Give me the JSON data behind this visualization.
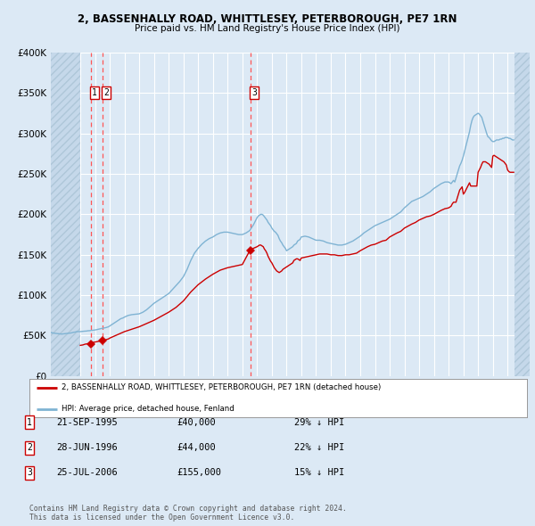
{
  "title": "2, BASSENHALLY ROAD, WHITTLESEY, PETERBOROUGH, PE7 1RN",
  "subtitle": "Price paid vs. HM Land Registry's House Price Index (HPI)",
  "background_color": "#dce9f5",
  "plot_bg_color": "#dce9f5",
  "grid_color": "#ffffff",
  "ylabel_values": [
    "£0",
    "£50K",
    "£100K",
    "£150K",
    "£200K",
    "£250K",
    "£300K",
    "£350K",
    "£400K"
  ],
  "ylim": [
    0,
    400000
  ],
  "xlim_start": 1993.0,
  "xlim_end": 2025.5,
  "sale_year_floats": [
    1995.72,
    1996.49,
    2006.56
  ],
  "sale_prices": [
    40000,
    44000,
    155000
  ],
  "sale_labels": [
    "1",
    "2",
    "3"
  ],
  "red_line_color": "#cc0000",
  "blue_line_color": "#7fb3d3",
  "sale_marker_color": "#cc0000",
  "dashed_line_color": "#ff5555",
  "legend_label_red": "2, BASSENHALLY ROAD, WHITTLESEY, PETERBOROUGH, PE7 1RN (detached house)",
  "legend_label_blue": "HPI: Average price, detached house, Fenland",
  "table_entries": [
    {
      "num": "1",
      "date": "21-SEP-1995",
      "price": "£40,000",
      "note": "29% ↓ HPI"
    },
    {
      "num": "2",
      "date": "28-JUN-1996",
      "price": "£44,000",
      "note": "22% ↓ HPI"
    },
    {
      "num": "3",
      "date": "25-JUL-2006",
      "price": "£155,000",
      "note": "15% ↓ HPI"
    }
  ],
  "footer": "Contains HM Land Registry data © Crown copyright and database right 2024.\nThis data is licensed under the Open Government Licence v3.0.",
  "hpi_data": {
    "years": [
      1993.0,
      1993.083,
      1993.167,
      1993.25,
      1993.333,
      1993.417,
      1993.5,
      1993.583,
      1993.667,
      1993.75,
      1993.833,
      1993.917,
      1994.0,
      1994.083,
      1994.167,
      1994.25,
      1994.333,
      1994.417,
      1994.5,
      1994.583,
      1994.667,
      1994.75,
      1994.833,
      1994.917,
      1995.0,
      1995.083,
      1995.167,
      1995.25,
      1995.333,
      1995.417,
      1995.5,
      1995.583,
      1995.667,
      1995.75,
      1995.833,
      1995.917,
      1996.0,
      1996.083,
      1996.167,
      1996.25,
      1996.333,
      1996.417,
      1996.5,
      1996.583,
      1996.667,
      1996.75,
      1996.833,
      1996.917,
      1997.0,
      1997.083,
      1997.167,
      1997.25,
      1997.333,
      1997.417,
      1997.5,
      1997.583,
      1997.667,
      1997.75,
      1997.833,
      1997.917,
      1998.0,
      1998.25,
      1998.5,
      1998.75,
      1999.0,
      1999.25,
      1999.5,
      1999.75,
      2000.0,
      2000.25,
      2000.5,
      2000.75,
      2001.0,
      2001.25,
      2001.5,
      2001.75,
      2002.0,
      2002.25,
      2002.5,
      2002.75,
      2003.0,
      2003.25,
      2003.5,
      2003.75,
      2004.0,
      2004.25,
      2004.5,
      2004.75,
      2005.0,
      2005.25,
      2005.5,
      2005.75,
      2006.0,
      2006.25,
      2006.5,
      2006.75,
      2007.0,
      2007.083,
      2007.167,
      2007.25,
      2007.333,
      2007.417,
      2007.5,
      2007.583,
      2007.667,
      2007.75,
      2007.833,
      2007.917,
      2008.0,
      2008.083,
      2008.167,
      2008.25,
      2008.333,
      2008.417,
      2008.5,
      2008.583,
      2008.667,
      2008.75,
      2008.833,
      2008.917,
      2009.0,
      2009.083,
      2009.167,
      2009.25,
      2009.333,
      2009.417,
      2009.5,
      2009.583,
      2009.667,
      2009.75,
      2009.833,
      2009.917,
      2010.0,
      2010.25,
      2010.5,
      2010.75,
      2011.0,
      2011.25,
      2011.5,
      2011.75,
      2012.0,
      2012.25,
      2012.5,
      2012.75,
      2013.0,
      2013.25,
      2013.5,
      2013.75,
      2014.0,
      2014.25,
      2014.5,
      2014.75,
      2015.0,
      2015.25,
      2015.5,
      2015.75,
      2016.0,
      2016.25,
      2016.5,
      2016.75,
      2017.0,
      2017.25,
      2017.5,
      2017.75,
      2018.0,
      2018.25,
      2018.5,
      2018.75,
      2019.0,
      2019.25,
      2019.5,
      2019.75,
      2020.0,
      2020.083,
      2020.167,
      2020.25,
      2020.333,
      2020.417,
      2020.5,
      2020.583,
      2020.667,
      2020.75,
      2020.833,
      2020.917,
      2021.0,
      2021.083,
      2021.167,
      2021.25,
      2021.333,
      2021.417,
      2021.5,
      2021.583,
      2021.667,
      2021.75,
      2021.833,
      2021.917,
      2022.0,
      2022.083,
      2022.167,
      2022.25,
      2022.333,
      2022.417,
      2022.5,
      2022.583,
      2022.667,
      2022.75,
      2022.833,
      2022.917,
      2023.0,
      2023.083,
      2023.167,
      2023.25,
      2023.333,
      2023.417,
      2023.5,
      2023.583,
      2023.667,
      2023.75,
      2023.833,
      2023.917,
      2024.0,
      2024.083,
      2024.167,
      2024.25,
      2024.333,
      2024.417
    ],
    "values": [
      54000,
      53500,
      53200,
      53000,
      52800,
      52600,
      52500,
      52300,
      52100,
      52000,
      52200,
      52400,
      52500,
      52700,
      52900,
      53000,
      53200,
      53500,
      54000,
      54200,
      54500,
      55000,
      55000,
      55000,
      55000,
      55200,
      55400,
      55500,
      55600,
      55700,
      56000,
      56100,
      56200,
      56500,
      56600,
      56800,
      57000,
      57300,
      57700,
      58000,
      58400,
      58700,
      59000,
      59300,
      59600,
      60000,
      60500,
      61000,
      62000,
      63000,
      64000,
      65000,
      66000,
      67000,
      68000,
      69000,
      70000,
      71000,
      71500,
      72000,
      73000,
      75000,
      76000,
      76500,
      77000,
      79000,
      82000,
      86000,
      90000,
      93000,
      96000,
      99000,
      102000,
      107000,
      112000,
      117000,
      123000,
      132000,
      143000,
      152000,
      158000,
      163000,
      167000,
      170000,
      172000,
      175000,
      177000,
      178000,
      178000,
      177000,
      176000,
      175000,
      175000,
      177000,
      180000,
      187000,
      196000,
      198000,
      199000,
      200000,
      200000,
      199000,
      197000,
      195000,
      193000,
      190000,
      188000,
      186000,
      183000,
      181000,
      179000,
      178000,
      176000,
      174000,
      170000,
      167000,
      165000,
      162000,
      160000,
      158000,
      155000,
      156000,
      157000,
      158000,
      159000,
      160000,
      162000,
      163000,
      164000,
      167000,
      168000,
      169000,
      172000,
      173000,
      172000,
      170000,
      168000,
      168000,
      167000,
      165000,
      164000,
      163000,
      162000,
      162000,
      163000,
      165000,
      167000,
      170000,
      173000,
      177000,
      180000,
      183000,
      186000,
      188000,
      190000,
      192000,
      194000,
      197000,
      200000,
      203000,
      208000,
      212000,
      216000,
      218000,
      220000,
      222000,
      225000,
      228000,
      232000,
      235000,
      238000,
      240000,
      240000,
      239000,
      238000,
      240000,
      242000,
      240000,
      245000,
      250000,
      255000,
      260000,
      263000,
      267000,
      272000,
      278000,
      284000,
      290000,
      296000,
      302000,
      310000,
      316000,
      320000,
      322000,
      323000,
      324000,
      325000,
      324000,
      322000,
      320000,
      315000,
      310000,
      305000,
      300000,
      296000,
      295000,
      293000,
      291000,
      290000,
      290000,
      291000,
      292000,
      292000,
      292000,
      293000,
      293000,
      294000,
      294000,
      295000,
      295000,
      295000,
      294000,
      294000,
      293000,
      292000,
      292000
    ]
  },
  "red_line_data": {
    "years": [
      1995.0,
      1995.083,
      1995.167,
      1995.25,
      1995.333,
      1995.417,
      1995.5,
      1995.583,
      1995.667,
      1995.75,
      1995.833,
      1995.917,
      1996.0,
      1996.083,
      1996.167,
      1996.25,
      1996.333,
      1996.417,
      1996.5,
      1996.583,
      1996.667,
      1996.75,
      1996.833,
      1996.917,
      1997.0,
      1997.25,
      1997.5,
      1997.75,
      1998.0,
      1998.25,
      1998.5,
      1998.75,
      1999.0,
      1999.25,
      1999.5,
      1999.75,
      2000.0,
      2000.25,
      2000.5,
      2000.75,
      2001.0,
      2001.25,
      2001.5,
      2001.75,
      2002.0,
      2002.25,
      2002.5,
      2002.75,
      2003.0,
      2003.25,
      2003.5,
      2003.75,
      2004.0,
      2004.25,
      2004.5,
      2004.75,
      2005.0,
      2005.25,
      2005.5,
      2005.75,
      2006.0,
      2006.25,
      2006.5,
      2006.583,
      2006.667,
      2006.75,
      2007.0,
      2007.083,
      2007.167,
      2007.25,
      2007.333,
      2007.417,
      2007.5,
      2007.583,
      2007.667,
      2007.75,
      2007.833,
      2007.917,
      2008.0,
      2008.083,
      2008.167,
      2008.25,
      2008.333,
      2008.417,
      2008.5,
      2008.583,
      2008.667,
      2008.75,
      2008.833,
      2008.917,
      2009.0,
      2009.083,
      2009.167,
      2009.25,
      2009.333,
      2009.417,
      2009.5,
      2009.583,
      2009.667,
      2009.75,
      2009.833,
      2009.917,
      2010.0,
      2010.25,
      2010.5,
      2010.75,
      2011.0,
      2011.25,
      2011.5,
      2011.75,
      2012.0,
      2012.25,
      2012.5,
      2012.75,
      2013.0,
      2013.25,
      2013.5,
      2013.75,
      2014.0,
      2014.25,
      2014.5,
      2014.75,
      2015.0,
      2015.25,
      2015.5,
      2015.75,
      2016.0,
      2016.25,
      2016.5,
      2016.75,
      2017.0,
      2017.25,
      2017.5,
      2017.75,
      2018.0,
      2018.25,
      2018.5,
      2018.75,
      2019.0,
      2019.25,
      2019.5,
      2019.75,
      2020.0,
      2020.083,
      2020.167,
      2020.25,
      2020.333,
      2020.417,
      2020.5,
      2020.583,
      2020.667,
      2020.75,
      2020.833,
      2020.917,
      2021.0,
      2021.083,
      2021.167,
      2021.25,
      2021.333,
      2021.417,
      2021.5,
      2021.583,
      2021.667,
      2021.75,
      2021.833,
      2021.917,
      2022.0,
      2022.083,
      2022.167,
      2022.25,
      2022.333,
      2022.417,
      2022.5,
      2022.583,
      2022.667,
      2022.75,
      2022.833,
      2022.917,
      2023.0,
      2023.083,
      2023.167,
      2023.25,
      2023.333,
      2023.417,
      2023.5,
      2023.583,
      2023.667,
      2023.75,
      2023.833,
      2023.917,
      2024.0,
      2024.083,
      2024.167,
      2024.25,
      2024.333,
      2024.417
    ],
    "values": [
      38000,
      38200,
      38500,
      39000,
      39500,
      39800,
      40000,
      40200,
      40500,
      41000,
      41500,
      41800,
      42000,
      42300,
      42700,
      43000,
      43400,
      43700,
      44000,
      44200,
      44500,
      45000,
      45500,
      46000,
      47000,
      49000,
      51000,
      53000,
      55000,
      56500,
      58000,
      59500,
      61000,
      63000,
      65000,
      67000,
      69000,
      71500,
      74000,
      76500,
      79000,
      82000,
      85000,
      89000,
      93000,
      98500,
      104000,
      108500,
      113000,
      116500,
      120000,
      123000,
      126000,
      128500,
      131000,
      132500,
      134000,
      135000,
      136000,
      137000,
      138000,
      146500,
      155000,
      156000,
      157000,
      158000,
      160000,
      161000,
      162000,
      162000,
      161000,
      160000,
      157000,
      155000,
      152000,
      148000,
      145000,
      142000,
      140000,
      137000,
      134000,
      132000,
      130000,
      129000,
      128000,
      129000,
      130000,
      132000,
      133000,
      134000,
      135000,
      136000,
      137000,
      138000,
      139000,
      140000,
      143000,
      144000,
      145000,
      145000,
      144000,
      143000,
      146000,
      147000,
      148000,
      149000,
      150000,
      151000,
      151000,
      151000,
      150000,
      150000,
      149000,
      149000,
      150000,
      150000,
      151000,
      152000,
      155000,
      157500,
      160000,
      162000,
      163000,
      165000,
      167000,
      168000,
      172000,
      174500,
      177000,
      179000,
      183000,
      185500,
      188000,
      190000,
      193000,
      195000,
      197000,
      198000,
      200000,
      202500,
      205000,
      207000,
      208000,
      209000,
      210000,
      213000,
      215000,
      215000,
      215000,
      220000,
      225000,
      230000,
      232000,
      234000,
      225000,
      227000,
      230000,
      233000,
      236000,
      239000,
      235000,
      235000,
      235000,
      235000,
      235000,
      235000,
      252000,
      255000,
      258000,
      262000,
      265000,
      265000,
      265000,
      264000,
      263000,
      262000,
      260000,
      258000,
      272000,
      273000,
      272000,
      271000,
      270000,
      269000,
      268000,
      267000,
      266000,
      265000,
      263000,
      261000,
      255000,
      253000,
      252000,
      252000,
      252000,
      252000
    ]
  }
}
